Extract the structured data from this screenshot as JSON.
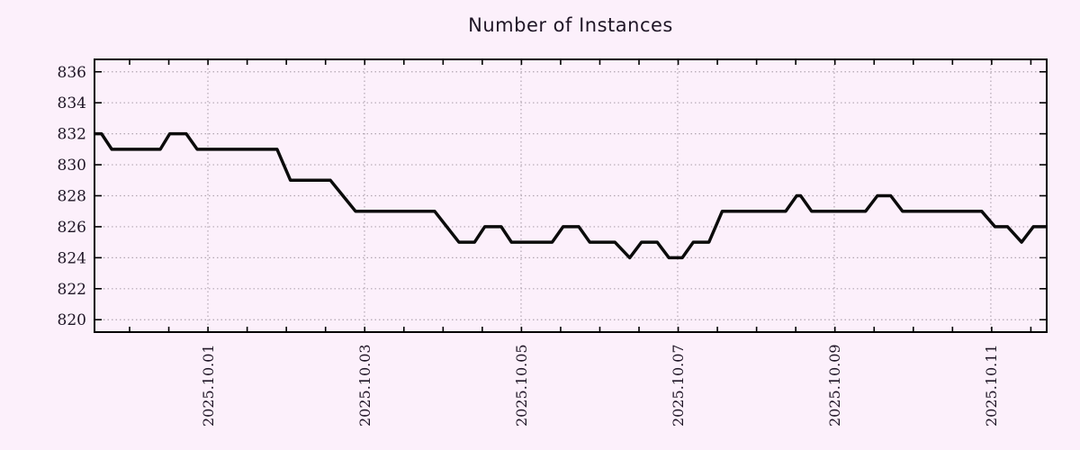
{
  "page": {
    "background_color": "#fcf0fb",
    "text_color": "#1f1626"
  },
  "chart_data": {
    "type": "line",
    "title": "Number of Instances",
    "xlabel": "",
    "ylabel": "",
    "grid": {
      "visible": true,
      "color": "#b2a6b2",
      "style": "dotted"
    },
    "legend": {
      "visible": false
    },
    "x_axis": {
      "unit": "days-from-left-edge",
      "span_days": 12.15,
      "minor_tick_interval_days": 0.5,
      "first_tick_offset_days": 0.448,
      "ticks": [
        {
          "t": 1.447,
          "label": "2025.10.01"
        },
        {
          "t": 3.445,
          "label": "2025.10.03"
        },
        {
          "t": 5.443,
          "label": "2025.10.05"
        },
        {
          "t": 7.441,
          "label": "2025.10.07"
        },
        {
          "t": 9.439,
          "label": "2025.10.09"
        },
        {
          "t": 11.437,
          "label": "2025.10.11"
        }
      ]
    },
    "y_axis": {
      "ticks": [
        836,
        834,
        832,
        830,
        828,
        826,
        824,
        822,
        820
      ],
      "ylim": [
        819.2,
        836.8
      ]
    },
    "series": [
      {
        "name": "instances",
        "color": "#0b0b0b",
        "line_width": 3.5,
        "points": [
          [
            0.0,
            832
          ],
          [
            0.09,
            832
          ],
          [
            0.22,
            831
          ],
          [
            0.84,
            831
          ],
          [
            0.96,
            832
          ],
          [
            1.17,
            832
          ],
          [
            1.31,
            831
          ],
          [
            2.33,
            831
          ],
          [
            2.5,
            829
          ],
          [
            3.01,
            829
          ],
          [
            3.33,
            827
          ],
          [
            4.34,
            827
          ],
          [
            4.65,
            825
          ],
          [
            4.85,
            825
          ],
          [
            4.98,
            826
          ],
          [
            5.19,
            826
          ],
          [
            5.32,
            825
          ],
          [
            5.84,
            825
          ],
          [
            5.98,
            826
          ],
          [
            6.18,
            826
          ],
          [
            6.32,
            825
          ],
          [
            6.64,
            825
          ],
          [
            6.83,
            824
          ],
          [
            6.98,
            825
          ],
          [
            7.18,
            825
          ],
          [
            7.33,
            824
          ],
          [
            7.5,
            824
          ],
          [
            7.64,
            825
          ],
          [
            7.84,
            825
          ],
          [
            8.01,
            827
          ],
          [
            8.82,
            827
          ],
          [
            8.96,
            828
          ],
          [
            9.01,
            828
          ],
          [
            9.15,
            827
          ],
          [
            9.84,
            827
          ],
          [
            9.99,
            828
          ],
          [
            10.16,
            828
          ],
          [
            10.31,
            827
          ],
          [
            11.32,
            827
          ],
          [
            11.49,
            826
          ],
          [
            11.65,
            826
          ],
          [
            11.83,
            825
          ],
          [
            11.98,
            826
          ],
          [
            12.15,
            826
          ]
        ]
      }
    ]
  }
}
